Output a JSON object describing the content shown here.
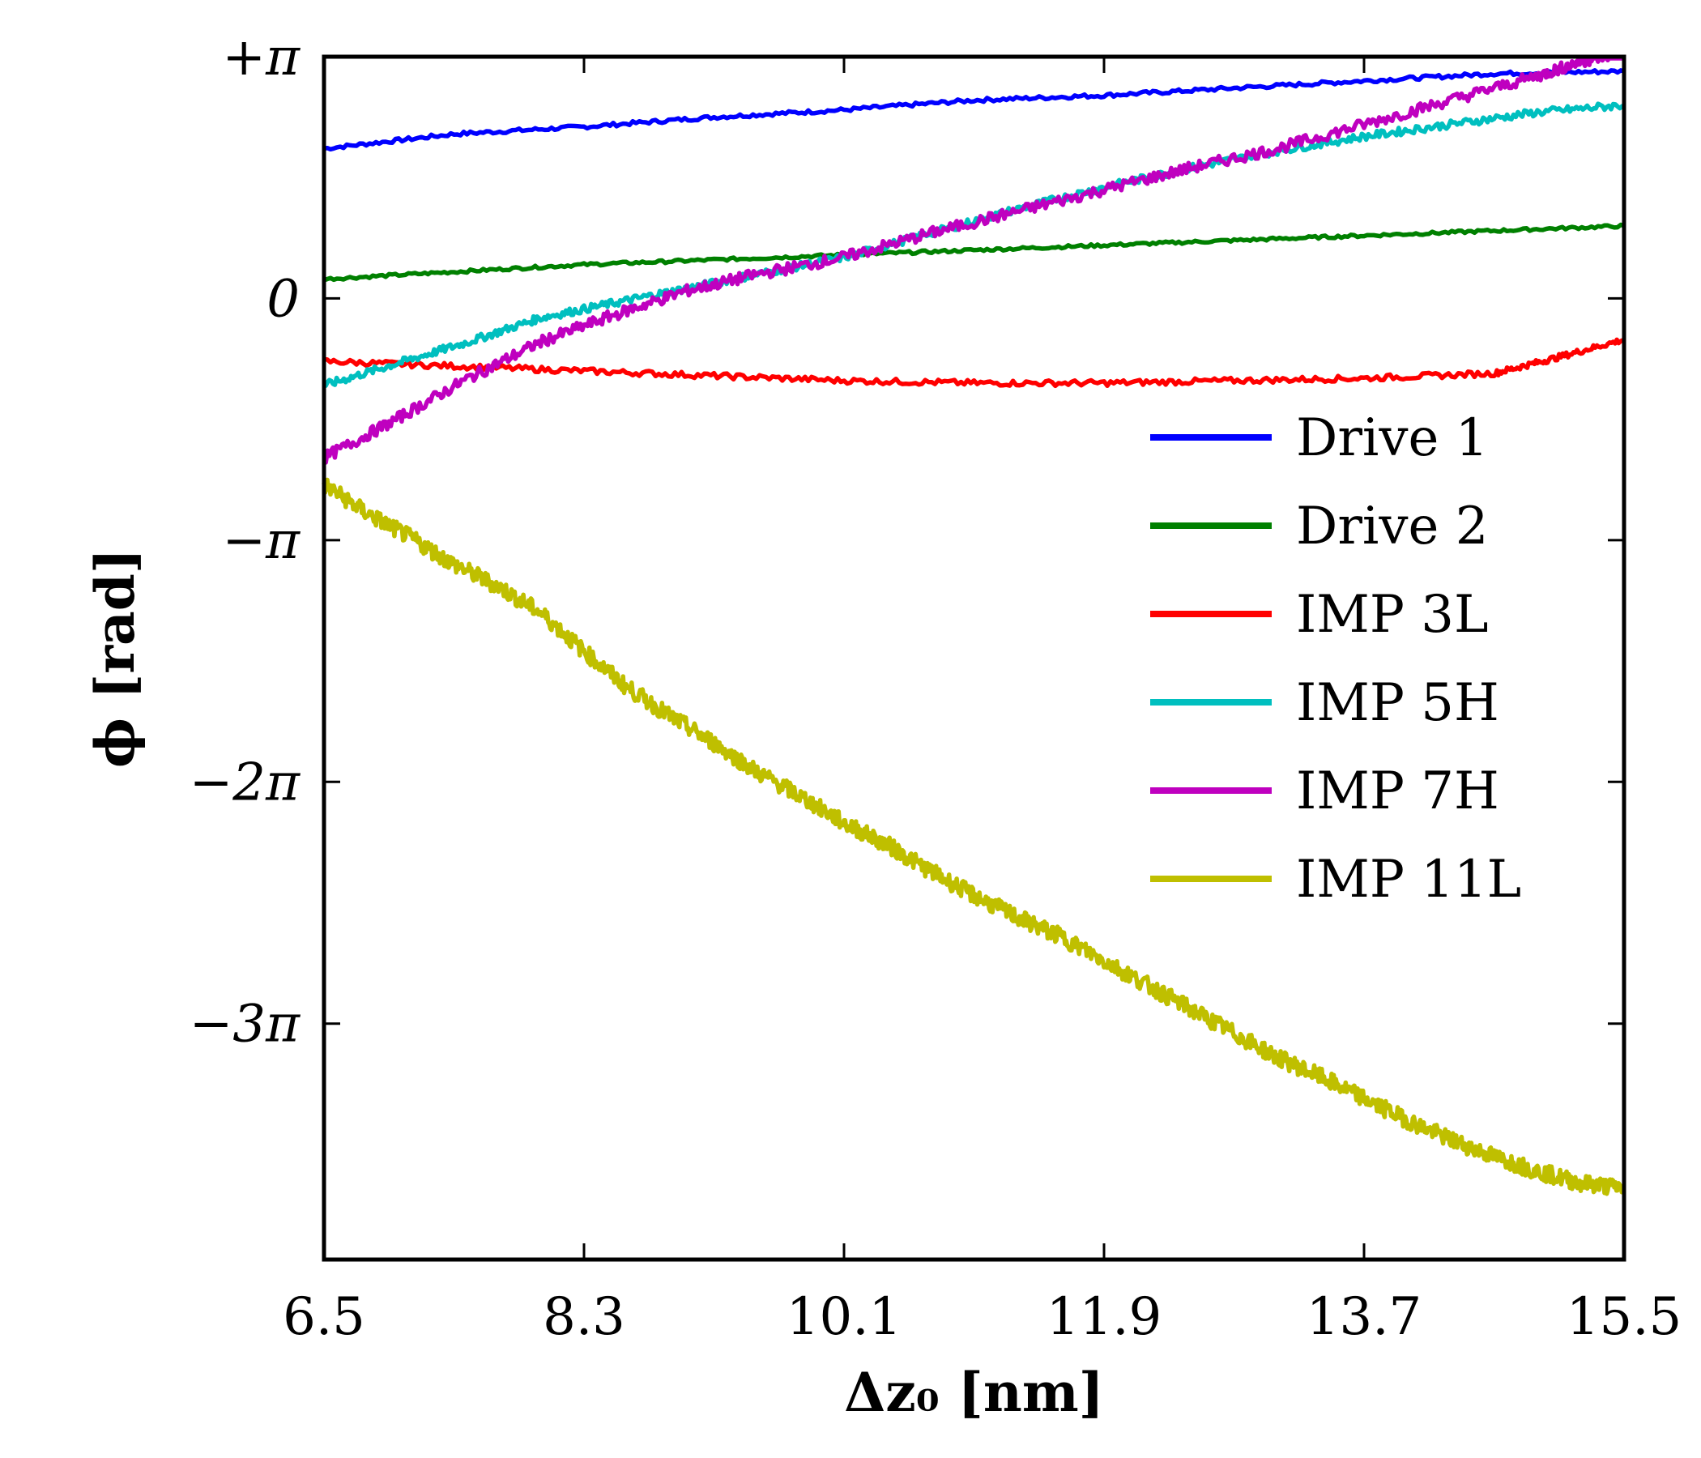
{
  "chart_data": {
    "type": "line",
    "title": "",
    "xlabel": "Δz₀  [nm]",
    "ylabel": "ϕ  [rad]",
    "xlim": [
      6.5,
      15.5
    ],
    "ylim": [
      -3.976,
      1.0
    ],
    "ylim_units_of_pi": true,
    "x_ticks": [
      6.5,
      8.3,
      10.1,
      11.9,
      13.7,
      15.5
    ],
    "x_tick_labels": [
      "6.5",
      "8.3",
      "10.1",
      "11.9",
      "13.7",
      "15.5"
    ],
    "y_ticks": [
      1,
      0,
      -1,
      -2,
      -3
    ],
    "y_tick_labels": [
      "+π",
      "0",
      "−π",
      "−2π",
      "−3π"
    ],
    "grid": false,
    "legend_position": "center-right",
    "series": [
      {
        "name": "Drive 1",
        "color": "#0000ff",
        "x": [
          6.5,
          7.4,
          8.3,
          9.2,
          10.1,
          11.0,
          11.9,
          12.8,
          13.7,
          14.6,
          15.5
        ],
        "y": [
          0.62,
          0.68,
          0.71,
          0.75,
          0.78,
          0.82,
          0.84,
          0.87,
          0.9,
          0.93,
          0.94
        ]
      },
      {
        "name": "Drive 2",
        "color": "#008000",
        "x": [
          6.5,
          7.4,
          8.3,
          9.2,
          10.1,
          11.0,
          11.9,
          12.8,
          13.7,
          14.6,
          15.5
        ],
        "y": [
          0.08,
          0.11,
          0.14,
          0.16,
          0.18,
          0.2,
          0.22,
          0.24,
          0.26,
          0.28,
          0.3
        ]
      },
      {
        "name": "IMP 3L",
        "color": "#ff0000",
        "x": [
          6.5,
          7.4,
          8.3,
          9.2,
          10.1,
          11.0,
          11.9,
          12.8,
          13.7,
          14.6,
          15.0,
          15.5
        ],
        "y": [
          -0.26,
          -0.28,
          -0.3,
          -0.32,
          -0.34,
          -0.35,
          -0.35,
          -0.34,
          -0.33,
          -0.31,
          -0.25,
          -0.17
        ]
      },
      {
        "name": "IMP 5H",
        "color": "#00bfbf",
        "x": [
          6.5,
          7.0,
          7.5,
          8.0,
          8.5,
          9.0,
          9.5,
          10.1,
          10.7,
          11.3,
          11.9,
          12.5,
          13.1,
          13.7,
          14.3,
          14.9,
          15.5
        ],
        "y": [
          -0.36,
          -0.27,
          -0.18,
          -0.08,
          -0.02,
          0.04,
          0.1,
          0.17,
          0.27,
          0.37,
          0.46,
          0.54,
          0.61,
          0.67,
          0.72,
          0.77,
          0.8
        ]
      },
      {
        "name": "IMP 7H",
        "color": "#bf00bf",
        "x": [
          6.5,
          7.0,
          7.5,
          8.0,
          8.5,
          9.0,
          9.5,
          10.1,
          10.7,
          11.3,
          11.9,
          12.5,
          13.1,
          13.7,
          14.3,
          14.9,
          15.2,
          15.5
        ],
        "y": [
          -0.66,
          -0.5,
          -0.33,
          -0.18,
          -0.07,
          0.03,
          0.1,
          0.17,
          0.27,
          0.36,
          0.45,
          0.54,
          0.62,
          0.72,
          0.82,
          0.92,
          0.98,
          1.02
        ]
      },
      {
        "name": "IMP 11L",
        "color": "#bfbf00",
        "x": [
          6.5,
          6.8,
          7.1,
          7.4,
          7.7,
          8.0,
          8.3,
          8.6,
          8.9,
          9.2,
          9.5,
          9.8,
          10.1,
          10.4,
          10.7,
          11.0,
          11.3,
          11.6,
          11.9,
          12.2,
          12.5,
          12.8,
          13.1,
          13.4,
          13.7,
          14.0,
          14.3,
          14.6,
          14.9,
          15.2,
          15.5
        ],
        "y": [
          -0.77,
          -0.89,
          -0.99,
          -1.1,
          -1.19,
          -1.3,
          -1.46,
          -1.61,
          -1.73,
          -1.84,
          -1.96,
          -2.06,
          -2.17,
          -2.26,
          -2.37,
          -2.47,
          -2.56,
          -2.64,
          -2.74,
          -2.84,
          -2.94,
          -3.04,
          -3.14,
          -3.22,
          -3.31,
          -3.4,
          -3.48,
          -3.55,
          -3.61,
          -3.66,
          -3.68
        ]
      }
    ]
  }
}
